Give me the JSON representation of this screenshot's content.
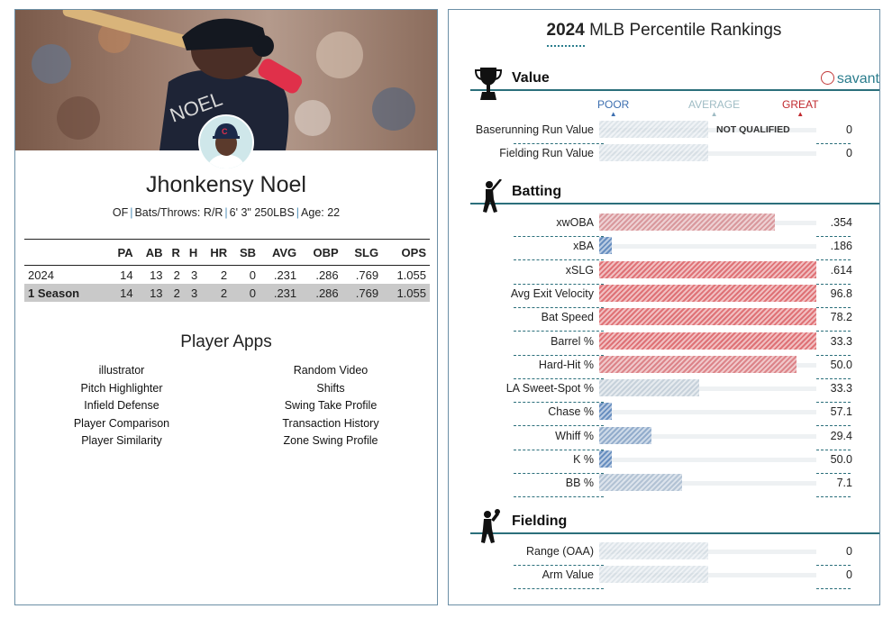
{
  "player": {
    "name": "Jhonkensy Noel",
    "position": "OF",
    "bats_throws": "Bats/Throws: R/R",
    "height_weight": "6' 3\" 250LBS",
    "age": "Age: 22"
  },
  "colors": {
    "accent": "#2b6f7b",
    "poor": "#3d6fb0",
    "average": "#9fbcc4",
    "great": "#c0282d",
    "savant_teal": "#2b7d8d"
  },
  "stats_table": {
    "headers": [
      "",
      "PA",
      "AB",
      "R",
      "H",
      "HR",
      "SB",
      "AVG",
      "OBP",
      "SLG",
      "OPS"
    ],
    "rows": [
      [
        "2024",
        "14",
        "13",
        "2",
        "3",
        "2",
        "0",
        ".231",
        ".286",
        ".769",
        "1.055"
      ],
      [
        "1 Season",
        "14",
        "13",
        "2",
        "3",
        "2",
        "0",
        ".231",
        ".286",
        ".769",
        "1.055"
      ]
    ]
  },
  "player_apps": {
    "title": "Player Apps",
    "left": [
      "illustrator",
      "Pitch Highlighter",
      "Infield Defense",
      "Player Comparison",
      "Player Similarity"
    ],
    "right": [
      "Random Video",
      "Shifts",
      "Swing Take Profile",
      "Transaction History",
      "Zone Swing Profile"
    ]
  },
  "rankings": {
    "title_year": "2024",
    "title_rest": "MLB Percentile Rankings",
    "brand": "savant",
    "scale": {
      "poor": "POOR",
      "average": "AVERAGE",
      "great": "GREAT"
    },
    "sections": [
      {
        "name": "Value",
        "icon": "trophy-icon",
        "metrics": [
          {
            "label": "Baserunning Run Value",
            "value": "0",
            "percentile": null,
            "note": "NOT QUALIFIED"
          },
          {
            "label": "Fielding Run Value",
            "value": "0",
            "percentile": null
          }
        ]
      },
      {
        "name": "Batting",
        "icon": "batter-icon",
        "metrics": [
          {
            "label": "xwOBA",
            "value": ".354",
            "percentile": 81
          },
          {
            "label": "xBA",
            "value": ".186",
            "percentile": 6
          },
          {
            "label": "xSLG",
            "value": ".614",
            "percentile": 100
          },
          {
            "label": "Avg Exit Velocity",
            "value": "96.8",
            "percentile": 100
          },
          {
            "label": "Bat Speed",
            "value": "78.2",
            "percentile": 100
          },
          {
            "label": "Barrel %",
            "value": "33.3",
            "percentile": 100
          },
          {
            "label": "Hard-Hit %",
            "value": "50.0",
            "percentile": 91
          },
          {
            "label": "LA Sweet-Spot %",
            "value": "33.3",
            "percentile": 46
          },
          {
            "label": "Chase %",
            "value": "57.1",
            "percentile": 6
          },
          {
            "label": "Whiff %",
            "value": "29.4",
            "percentile": 24
          },
          {
            "label": "K %",
            "value": "50.0",
            "percentile": 6
          },
          {
            "label": "BB %",
            "value": "7.1",
            "percentile": 38
          }
        ]
      },
      {
        "name": "Fielding",
        "icon": "fielder-icon",
        "metrics": [
          {
            "label": "Range (OAA)",
            "value": "0",
            "percentile": null
          },
          {
            "label": "Arm Value",
            "value": "0",
            "percentile": null
          }
        ]
      }
    ]
  }
}
